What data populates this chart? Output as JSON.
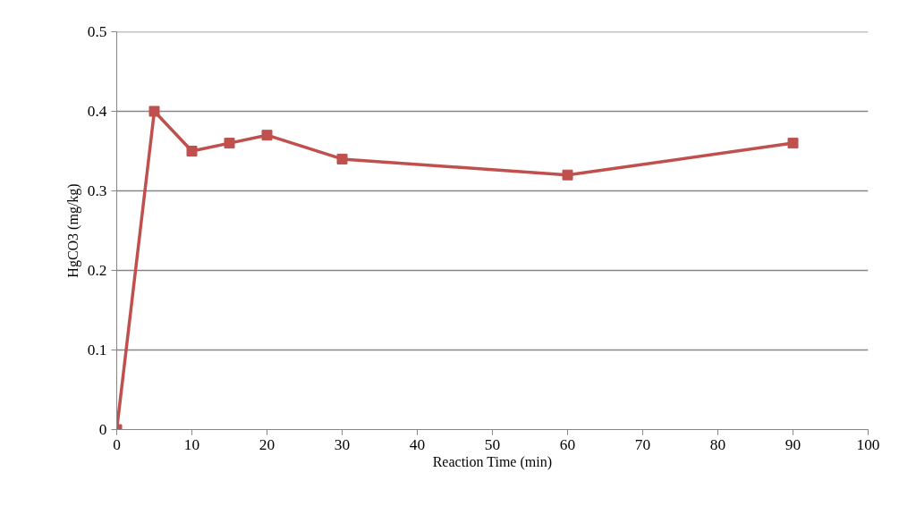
{
  "chart_data": {
    "type": "line",
    "xlabel": "Reaction Time (min)",
    "ylabel": "HgCO3 (mg/kg)",
    "x": [
      0,
      5,
      10,
      15,
      20,
      30,
      60,
      90
    ],
    "series": [
      {
        "color": "#c0504d",
        "values": [
          0,
          0.4,
          0.35,
          0.36,
          0.37,
          0.34,
          0.32,
          0.36
        ]
      }
    ],
    "xlim": [
      0,
      100
    ],
    "xticks": [
      0,
      10,
      20,
      30,
      40,
      50,
      60,
      70,
      80,
      90,
      100
    ],
    "ylim": [
      0,
      0.5
    ],
    "yticks": [
      0,
      0.1,
      0.2,
      0.3,
      0.4,
      0.5
    ],
    "grid": "y",
    "marker": "square",
    "line_style": "solid"
  }
}
